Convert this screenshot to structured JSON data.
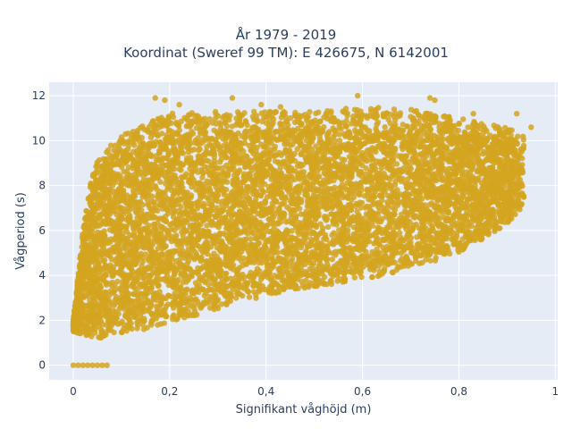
{
  "chart_data": {
    "type": "scatter",
    "title_line1": "År 1979 - 2019",
    "title_line2": "Koordinat (Sweref 99 TM): E 426675, N 6142001",
    "xlabel": "Signifikant våghöjd (m)",
    "ylabel": "Vågperiod (s)",
    "xlim": [
      -0.05,
      1.005
    ],
    "ylim": [
      -0.65,
      12.6
    ],
    "x_ticks": [
      0,
      0.2,
      0.4,
      0.6,
      0.8,
      1
    ],
    "x_tick_labels": [
      "0",
      "0,2",
      "0,4",
      "0,6",
      "0,8",
      "1"
    ],
    "y_ticks": [
      0,
      2,
      4,
      6,
      8,
      10,
      12
    ],
    "y_tick_labels": [
      "0",
      "2",
      "4",
      "6",
      "8",
      "10",
      "12"
    ],
    "grid": true,
    "colors": {
      "marker": "#d4a420",
      "plot_bg": "#e5ecf6",
      "grid": "#ffffff"
    },
    "lower_envelope": [
      [
        0.0,
        1.5
      ],
      [
        0.03,
        1.3
      ],
      [
        0.06,
        1.2
      ],
      [
        0.1,
        1.4
      ],
      [
        0.15,
        1.6
      ],
      [
        0.2,
        1.9
      ],
      [
        0.25,
        2.2
      ],
      [
        0.3,
        2.5
      ],
      [
        0.35,
        2.8
      ],
      [
        0.4,
        3.1
      ],
      [
        0.5,
        3.5
      ],
      [
        0.6,
        3.8
      ],
      [
        0.7,
        4.3
      ],
      [
        0.8,
        5.0
      ],
      [
        0.85,
        5.6
      ],
      [
        0.9,
        6.3
      ],
      [
        0.93,
        7.0
      ]
    ],
    "upper_envelope": [
      [
        0.0,
        2.0
      ],
      [
        0.02,
        6.0
      ],
      [
        0.04,
        8.8
      ],
      [
        0.06,
        9.5
      ],
      [
        0.1,
        10.2
      ],
      [
        0.15,
        10.8
      ],
      [
        0.2,
        11.2
      ],
      [
        0.3,
        11.3
      ],
      [
        0.4,
        11.3
      ],
      [
        0.5,
        11.3
      ],
      [
        0.6,
        11.5
      ],
      [
        0.7,
        11.4
      ],
      [
        0.8,
        11.0
      ],
      [
        0.9,
        10.6
      ],
      [
        0.93,
        10.2
      ],
      [
        0.96,
        10.5
      ]
    ],
    "zero_period_points": [
      {
        "x": 0.0,
        "y": 0
      },
      {
        "x": 0.01,
        "y": 0
      },
      {
        "x": 0.02,
        "y": 0
      },
      {
        "x": 0.03,
        "y": 0
      },
      {
        "x": 0.04,
        "y": 0
      },
      {
        "x": 0.05,
        "y": 0
      },
      {
        "x": 0.06,
        "y": 0
      },
      {
        "x": 0.07,
        "y": 0
      }
    ],
    "outlier_points": [
      {
        "x": 0.17,
        "y": 11.9
      },
      {
        "x": 0.19,
        "y": 11.8
      },
      {
        "x": 0.22,
        "y": 11.6
      },
      {
        "x": 0.33,
        "y": 11.9
      },
      {
        "x": 0.39,
        "y": 11.6
      },
      {
        "x": 0.43,
        "y": 11.5
      },
      {
        "x": 0.59,
        "y": 12.0
      },
      {
        "x": 0.74,
        "y": 11.9
      },
      {
        "x": 0.75,
        "y": 11.8
      },
      {
        "x": 0.83,
        "y": 11.2
      },
      {
        "x": 0.92,
        "y": 11.2
      },
      {
        "x": 0.95,
        "y": 10.6
      },
      {
        "x": 0.0,
        "y": 1.6
      },
      {
        "x": 0.0,
        "y": 1.8
      }
    ]
  }
}
